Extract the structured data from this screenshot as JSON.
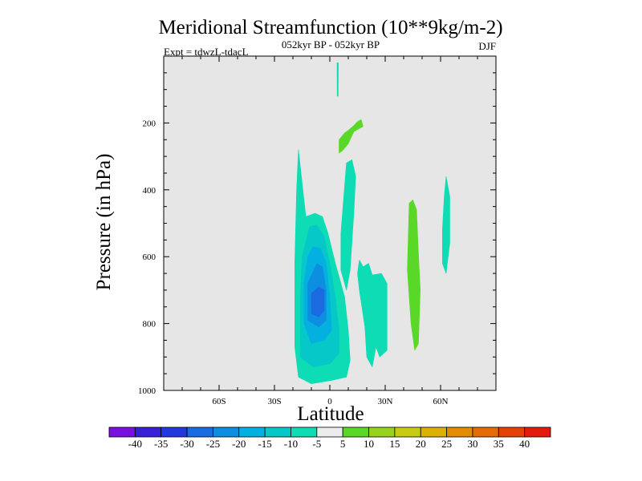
{
  "chart_data": {
    "type": "contour",
    "title": "Meridional Streamfunction (10**9kg/m-2)",
    "subtitle": "052kyr BP - 052kyr BP",
    "left_label": "Expt = tdwzL-tdacL",
    "right_label": "DJF",
    "xlabel": "Latitude",
    "ylabel": "Pressure (in hPa)",
    "xlim": [
      -90,
      90
    ],
    "ylim": [
      1000,
      0
    ],
    "x_ticks": [
      {
        "value": -60,
        "label": "60S"
      },
      {
        "value": -30,
        "label": "30S"
      },
      {
        "value": 0,
        "label": "0"
      },
      {
        "value": 30,
        "label": "30N"
      },
      {
        "value": 60,
        "label": "60N"
      }
    ],
    "y_ticks": [
      {
        "value": 200,
        "label": "200"
      },
      {
        "value": 400,
        "label": "400"
      },
      {
        "value": 600,
        "label": "600"
      },
      {
        "value": 800,
        "label": "800"
      },
      {
        "value": 1000,
        "label": "1000"
      }
    ],
    "background_color": "#e6e6e6",
    "levels": [
      -40,
      -35,
      -30,
      -25,
      -20,
      -15,
      -10,
      -5,
      5,
      10,
      15,
      20,
      25,
      30,
      35,
      40
    ],
    "level_labels": [
      "-40",
      "-35",
      "-30",
      "-25",
      "-20",
      "-15",
      "-10",
      "-5",
      "5",
      "10",
      "15",
      "20",
      "25",
      "30",
      "35",
      "40"
    ],
    "colors": [
      "#7a10e0",
      "#3a1fd8",
      "#2038dc",
      "#1a6ae0",
      "#0e8ee0",
      "#04b0e0",
      "#06c8c8",
      "#0edcb4",
      "#ececec",
      "#5ad828",
      "#96d21e",
      "#c8cc10",
      "#dcb004",
      "#e28c02",
      "#e46c06",
      "#e44208",
      "#e41a0c"
    ],
    "regions": [
      {
        "level": -10,
        "color": "#0edcb4",
        "points": [
          [
            -13,
            480
          ],
          [
            -8,
            470
          ],
          [
            -4,
            480
          ],
          [
            -1,
            530
          ],
          [
            3,
            620
          ],
          [
            8,
            720
          ],
          [
            10,
            820
          ],
          [
            11,
            910
          ],
          [
            9,
            960
          ],
          [
            1,
            970
          ],
          [
            -10,
            980
          ],
          [
            -17,
            960
          ],
          [
            -19,
            870
          ],
          [
            -19,
            620
          ],
          [
            -18,
            400
          ],
          [
            -17,
            280
          ]
        ]
      },
      {
        "level": -10,
        "color": "#0edcb4",
        "points": [
          [
            9,
            320
          ],
          [
            12,
            310
          ],
          [
            14,
            360
          ],
          [
            13,
            470
          ],
          [
            11,
            640
          ],
          [
            9,
            700
          ],
          [
            6,
            640
          ],
          [
            6,
            530
          ]
        ]
      },
      {
        "level": -15,
        "color": "#06c8c8",
        "points": [
          [
            -11,
            510
          ],
          [
            -7,
            505
          ],
          [
            -3,
            540
          ],
          [
            0,
            620
          ],
          [
            3,
            720
          ],
          [
            5,
            820
          ],
          [
            5,
            890
          ],
          [
            0,
            920
          ],
          [
            -9,
            930
          ],
          [
            -16,
            900
          ],
          [
            -16,
            720
          ],
          [
            -15,
            600
          ]
        ]
      },
      {
        "level": -10,
        "color": "#0edcb4",
        "points": [
          [
            16,
            610
          ],
          [
            18,
            630
          ],
          [
            21,
            620
          ],
          [
            23,
            655
          ],
          [
            28,
            650
          ],
          [
            31,
            680
          ],
          [
            31,
            880
          ],
          [
            27,
            900
          ],
          [
            25,
            870
          ],
          [
            23,
            930
          ],
          [
            20,
            900
          ],
          [
            19,
            810
          ],
          [
            16,
            700
          ],
          [
            15,
            650
          ]
        ]
      },
      {
        "level": -10,
        "color": "#0edcb4",
        "points": [
          [
            63,
            360
          ],
          [
            65,
            420
          ],
          [
            65,
            560
          ],
          [
            63,
            650
          ],
          [
            61,
            620
          ],
          [
            61,
            520
          ],
          [
            62,
            420
          ]
        ]
      },
      {
        "level": 5,
        "color": "#5ad828",
        "points": [
          [
            5,
            250
          ],
          [
            8,
            230
          ],
          [
            10,
            222
          ],
          [
            13,
            208
          ],
          [
            15,
            196
          ],
          [
            17,
            190
          ],
          [
            18,
            210
          ],
          [
            13,
            226
          ],
          [
            10,
            262
          ],
          [
            7,
            282
          ],
          [
            5,
            290
          ]
        ]
      },
      {
        "level": 5,
        "color": "#5ad828",
        "points": [
          [
            43,
            440
          ],
          [
            45,
            430
          ],
          [
            47,
            460
          ],
          [
            48,
            590
          ],
          [
            49,
            700
          ],
          [
            48,
            860
          ],
          [
            46,
            880
          ],
          [
            44,
            800
          ],
          [
            42,
            640
          ]
        ]
      },
      {
        "level": -20,
        "color": "#04b0e0",
        "points": [
          [
            -9,
            570
          ],
          [
            -5,
            575
          ],
          [
            -2,
            620
          ],
          [
            0,
            720
          ],
          [
            1,
            820
          ],
          [
            -3,
            850
          ],
          [
            -10,
            860
          ],
          [
            -14,
            800
          ],
          [
            -14,
            680
          ],
          [
            -12,
            600
          ]
        ]
      },
      {
        "level": -25,
        "color": "#0e8ee0",
        "points": [
          [
            -7,
            620
          ],
          [
            -4,
            630
          ],
          [
            -2,
            700
          ],
          [
            -2,
            790
          ],
          [
            -6,
            810
          ],
          [
            -12,
            790
          ],
          [
            -12,
            680
          ]
        ]
      },
      {
        "level": -30,
        "color": "#1a6ae0",
        "points": [
          [
            -6,
            690
          ],
          [
            -3,
            700
          ],
          [
            -3,
            760
          ],
          [
            -6,
            780
          ],
          [
            -10,
            770
          ],
          [
            -10,
            710
          ]
        ]
      },
      {
        "level": -5,
        "color": "#0edcb4",
        "points": [
          [
            3.9,
            20
          ],
          [
            4.6,
            20
          ],
          [
            4.5,
            120
          ],
          [
            4.0,
            120
          ]
        ]
      }
    ]
  }
}
